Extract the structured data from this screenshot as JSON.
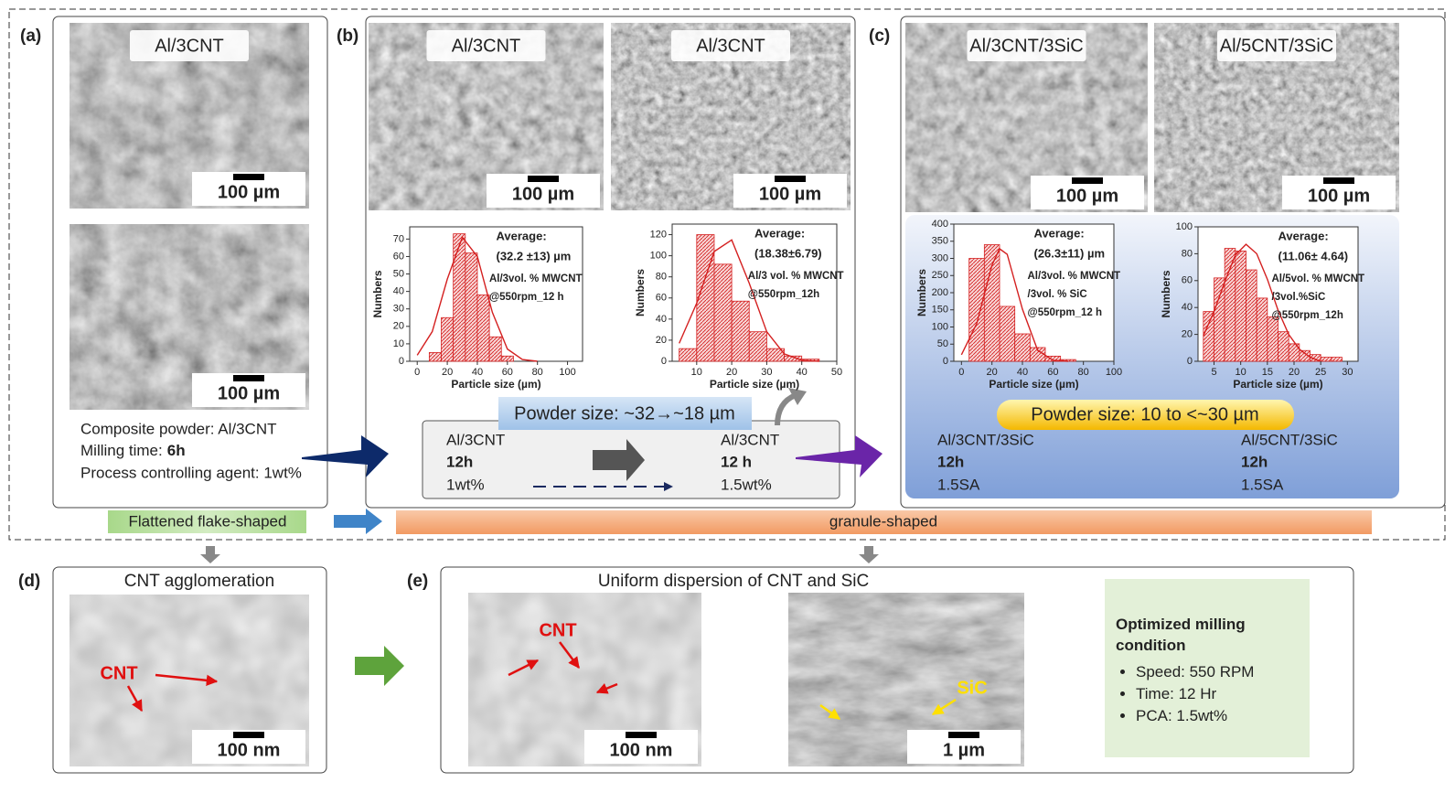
{
  "chart_data": [
    {
      "type": "histogram",
      "bins": [
        8,
        16,
        24,
        32,
        40,
        48,
        56,
        64
      ],
      "values": [
        5,
        25,
        73,
        62,
        38,
        14,
        3
      ],
      "color": "#d42020",
      "fit": {
        "x": [
          0,
          10,
          20,
          30,
          40,
          50,
          60,
          70,
          80
        ],
        "values": [
          3.5,
          17,
          47,
          71,
          60,
          28,
          7,
          1,
          0
        ]
      },
      "xlim": [
        -5,
        110
      ],
      "ylim": [
        0,
        77
      ],
      "xticks": [
        0,
        20,
        40,
        60,
        80,
        100
      ],
      "yticks": [
        0,
        10,
        20,
        30,
        40,
        50,
        60,
        70
      ],
      "xlabel": "Particle size (µm)",
      "ylabel": "Numbers",
      "annotations": [
        "Average:",
        "(32.2 ±13) µm",
        "Al/3vol. % MWCNT",
        "@550rpm_12 h"
      ]
    },
    {
      "type": "histogram",
      "bins": [
        5,
        10,
        15,
        20,
        25,
        30,
        35,
        40,
        45
      ],
      "values": [
        12,
        120,
        92,
        57,
        28,
        12,
        5,
        2
      ],
      "color": "#d42020",
      "fit": {
        "x": [
          5,
          10,
          15,
          20,
          25,
          30,
          35,
          40,
          45
        ],
        "values": [
          17,
          55,
          104,
          115,
          74,
          28,
          7,
          1,
          0
        ]
      },
      "xlim": [
        3,
        50
      ],
      "ylim": [
        0,
        130
      ],
      "xticks": [
        10,
        20,
        30,
        40,
        50
      ],
      "yticks": [
        0,
        20,
        40,
        60,
        80,
        100,
        120
      ],
      "xlabel": "Particle size (µm)",
      "ylabel": "Numbers",
      "annotations": [
        "Average:",
        "(18.38±6.79)",
        "Al/3 vol. % MWCNT",
        "@550rpm_12h"
      ]
    },
    {
      "type": "histogram",
      "bins": [
        5,
        15,
        25,
        35,
        45,
        55,
        65,
        75
      ],
      "values": [
        300,
        340,
        160,
        80,
        40,
        15,
        5
      ],
      "color": "#d42020",
      "fit": {
        "x": [
          0,
          10,
          20,
          25,
          30,
          40,
          50,
          60,
          70
        ],
        "values": [
          19,
          110,
          280,
          328,
          312,
          152,
          32,
          3,
          0
        ]
      },
      "xlim": [
        -5,
        100
      ],
      "ylim": [
        0,
        400
      ],
      "xticks": [
        0,
        20,
        40,
        60,
        80,
        100
      ],
      "yticks": [
        0,
        50,
        100,
        150,
        200,
        250,
        300,
        350,
        400
      ],
      "xlabel": "Particle size (µm)",
      "ylabel": "Numbers",
      "annotations": [
        "Average:",
        "(26.3±11) µm",
        "Al/3vol. % MWCNT",
        "/3vol. % SiC",
        "@550rpm_12 h"
      ]
    },
    {
      "type": "histogram",
      "bins": [
        3,
        5,
        7,
        9,
        11,
        13,
        15,
        17,
        19,
        21,
        23,
        25,
        27,
        29
      ],
      "values": [
        37,
        62,
        84,
        82,
        68,
        47,
        33,
        22,
        13,
        8,
        5,
        3,
        3
      ],
      "color": "#d42020",
      "fit": {
        "x": [
          3,
          5,
          7,
          9,
          11,
          13,
          15,
          17,
          19,
          21,
          23,
          25
        ],
        "values": [
          19,
          37,
          59,
          79,
          87,
          80,
          61,
          38,
          20,
          9,
          3,
          0
        ]
      },
      "xlim": [
        2,
        32
      ],
      "ylim": [
        0,
        100
      ],
      "xticks": [
        5,
        10,
        15,
        20,
        25,
        30
      ],
      "yticks": [
        0,
        20,
        40,
        60,
        80,
        100
      ],
      "xlabel": "Particle size (µm)",
      "ylabel": "Numbers",
      "annotations": [
        "Average:",
        "(11.06± 4.64)",
        "Al/5vol. % MWCNT",
        "/3vol.%SiC",
        "@550rpm_12h"
      ]
    }
  ],
  "panels": {
    "a": {
      "label": "(a)",
      "images": [
        {
          "title": "Al/3CNT",
          "scale": "100 µm"
        },
        {
          "scale": "100 µm"
        }
      ],
      "composition": "Composite powder: Al/3CNT",
      "milling_time": {
        "label": "Milling time:",
        "value": "6h"
      },
      "pca": "Process controlling agent: 1wt%"
    },
    "b": {
      "label": "(b)",
      "images": [
        {
          "title": "Al/3CNT",
          "scale": "100 µm"
        },
        {
          "title": "Al/3CNT",
          "scale": "100 µm"
        }
      ],
      "powder_size": "Powder size: ~32→~18 µm",
      "conditions": [
        [
          "Al/3CNT",
          "12h",
          "1wt%"
        ],
        [
          "Al/3CNT",
          "12 h",
          "1.5wt%"
        ]
      ]
    },
    "c": {
      "label": "(c)",
      "images": [
        {
          "title": "Al/3CNT/3SiC",
          "scale": "100 µm"
        },
        {
          "title": "Al/5CNT/3SiC",
          "scale": "100 µm"
        }
      ],
      "powder_size": "Powder size: 10 to <~30 µm",
      "conditions": [
        [
          "Al/3CNT/3SiC",
          "12h",
          "1.5SA"
        ],
        [
          "Al/5CNT/3SiC",
          "12h",
          "1.5SA"
        ]
      ]
    },
    "d": {
      "label": "(d)",
      "title": "CNT agglomeration",
      "images": [
        {
          "scale": "100 nm",
          "marker": "CNT"
        }
      ]
    },
    "e": {
      "label": "(e)",
      "title": "Uniform dispersion of CNT and SiC",
      "images": [
        {
          "scale": "100 nm",
          "marker": "CNT"
        },
        {
          "scale": "1 µm",
          "marker": "SiC"
        }
      ]
    }
  },
  "morphology": [
    "Flattened flake-shaped",
    "granule-shaped"
  ],
  "optimized": {
    "title": "Optimized milling condition",
    "items": [
      "Speed: 550 RPM",
      "Time: 12 Hr",
      "PCA: 1.5wt%"
    ]
  }
}
